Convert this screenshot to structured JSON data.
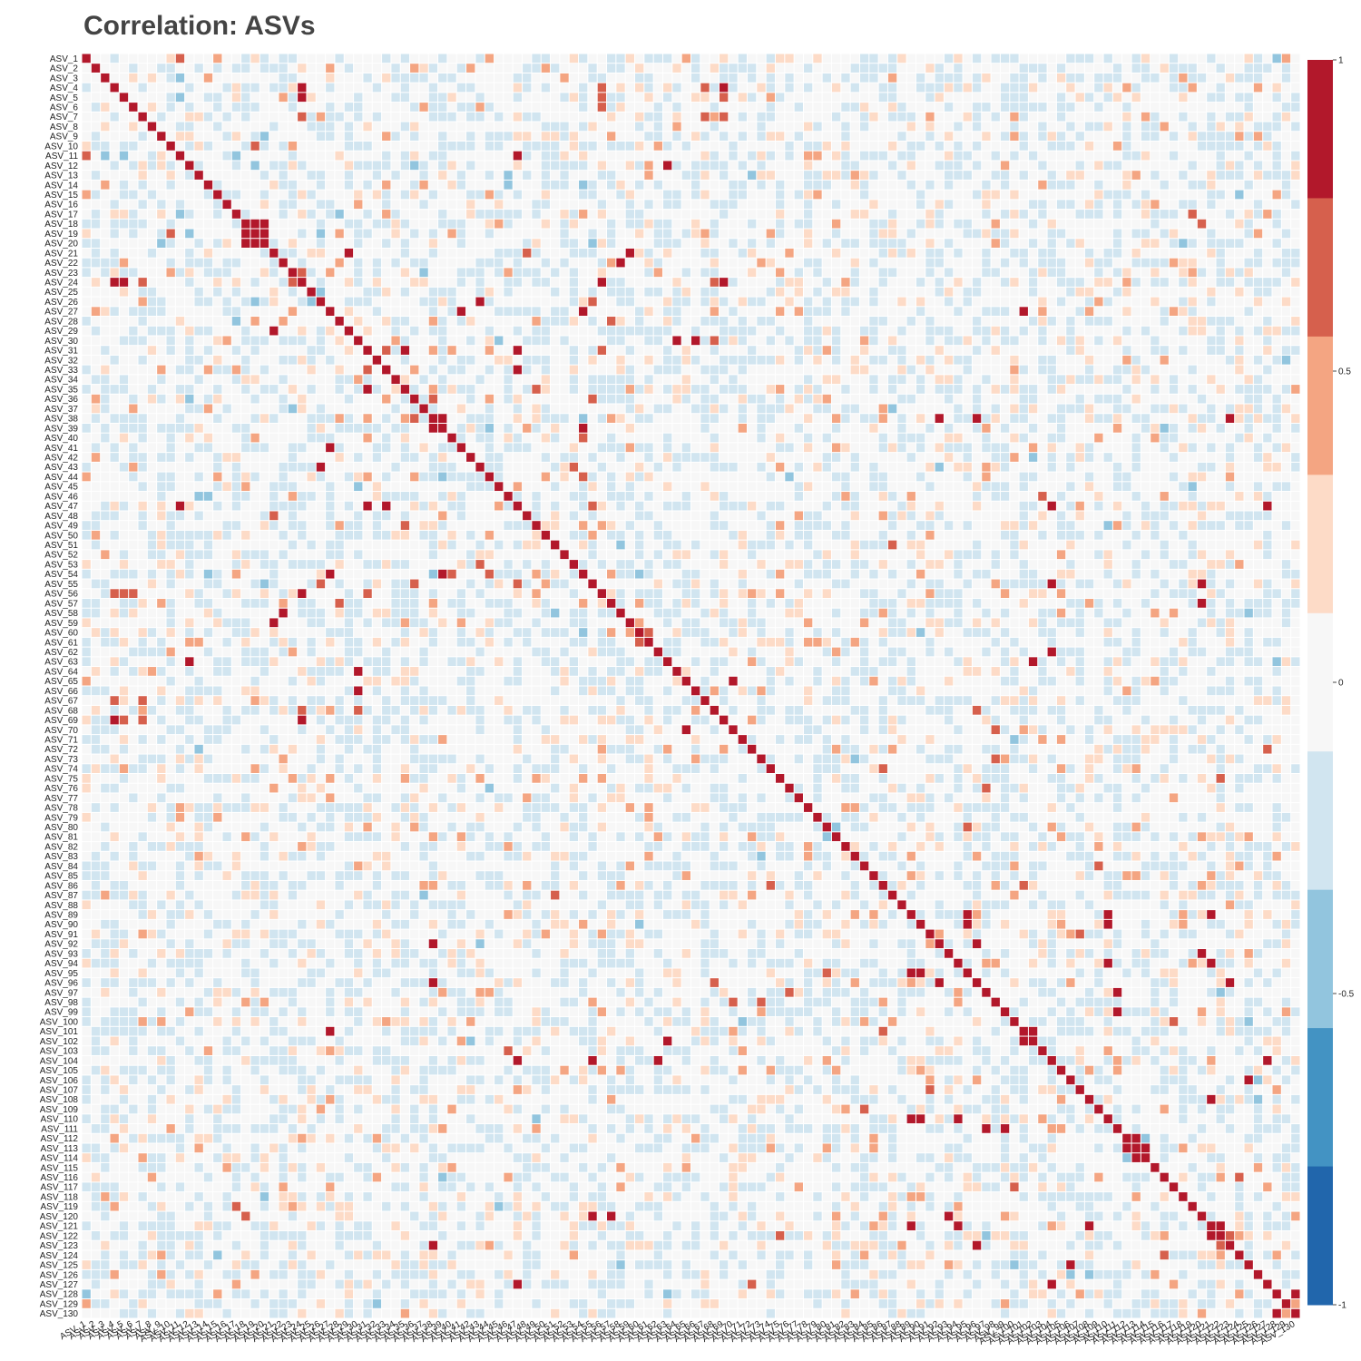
{
  "chart_data": {
    "type": "heatmap",
    "title": "Correlation: ASVs",
    "n_labels": 130,
    "label_prefix": "ASV_",
    "value_range": [
      -1,
      1
    ],
    "diagonal_value": 1,
    "colorscale": [
      {
        "min": -1.0,
        "max": -0.8,
        "color": "#2166ac"
      },
      {
        "min": -0.8,
        "max": -0.6,
        "color": "#4393c3"
      },
      {
        "min": -0.6,
        "max": -0.4,
        "color": "#92c5de"
      },
      {
        "min": -0.4,
        "max": -0.2,
        "color": "#d1e5f0"
      },
      {
        "min": -0.2,
        "max": 0.2,
        "color": "#f7f7f7"
      },
      {
        "min": 0.2,
        "max": 0.4,
        "color": "#fddbc7"
      },
      {
        "min": 0.4,
        "max": 0.6,
        "color": "#f4a582"
      },
      {
        "min": 0.6,
        "max": 0.8,
        "color": "#d6604d"
      },
      {
        "min": 0.8,
        "max": 1.0,
        "color": "#b2182b"
      }
    ],
    "colorbar_ticks": [
      {
        "value": 1,
        "label": "1"
      },
      {
        "value": 0.5,
        "label": "0.5"
      },
      {
        "value": 0,
        "label": "0"
      },
      {
        "value": -0.5,
        "label": "-0.5"
      },
      {
        "value": -1,
        "label": "-1"
      }
    ],
    "strong_pairs": [
      [
        4,
        24,
        0.9
      ],
      [
        4,
        56,
        0.7
      ],
      [
        4,
        67,
        0.75
      ],
      [
        4,
        69,
        0.85
      ],
      [
        5,
        24,
        0.85
      ],
      [
        5,
        56,
        0.7
      ],
      [
        5,
        69,
        0.7
      ],
      [
        6,
        56,
        0.7
      ],
      [
        7,
        24,
        0.7
      ],
      [
        7,
        67,
        0.7
      ],
      [
        7,
        69,
        0.75
      ],
      [
        10,
        19,
        0.7
      ],
      [
        11,
        47,
        0.85
      ],
      [
        11,
        1,
        0.75
      ],
      [
        12,
        63,
        0.9
      ],
      [
        13,
        46,
        -0.5
      ],
      [
        13,
        72,
        -0.5
      ],
      [
        18,
        19,
        0.9
      ],
      [
        18,
        20,
        0.85
      ],
      [
        19,
        20,
        0.9
      ],
      [
        17,
        119,
        0.7
      ],
      [
        18,
        120,
        0.7
      ],
      [
        21,
        29,
        0.9
      ],
      [
        21,
        59,
        0.9
      ],
      [
        21,
        48,
        0.7
      ],
      [
        22,
        58,
        0.9
      ],
      [
        23,
        24,
        0.7
      ],
      [
        24,
        56,
        0.85
      ],
      [
        24,
        68,
        0.8
      ],
      [
        24,
        69,
        0.9
      ],
      [
        26,
        43,
        0.9
      ],
      [
        26,
        55,
        0.7
      ],
      [
        27,
        41,
        0.9
      ],
      [
        27,
        54,
        0.85
      ],
      [
        27,
        101,
        0.9
      ],
      [
        28,
        57,
        0.7
      ],
      [
        30,
        64,
        0.85
      ],
      [
        30,
        66,
        0.9
      ],
      [
        30,
        68,
        0.8
      ],
      [
        30,
        45,
        -0.45
      ],
      [
        31,
        47,
        0.9
      ],
      [
        31,
        35,
        0.85
      ],
      [
        31,
        56,
        0.7
      ],
      [
        33,
        47,
        0.9
      ],
      [
        33,
        31,
        0.7
      ],
      [
        36,
        55,
        0.7
      ],
      [
        38,
        92,
        0.9
      ],
      [
        38,
        96,
        0.9
      ],
      [
        38,
        123,
        0.9
      ],
      [
        39,
        38,
        0.9
      ],
      [
        39,
        54,
        0.9
      ],
      [
        40,
        54,
        0.7
      ],
      [
        43,
        53,
        0.7
      ],
      [
        44,
        54,
        0.7
      ],
      [
        46,
        103,
        0.8
      ],
      [
        47,
        55,
        0.8
      ],
      [
        47,
        104,
        0.9
      ],
      [
        47,
        127,
        0.9
      ],
      [
        55,
        104,
        0.9
      ],
      [
        55,
        120,
        0.9
      ],
      [
        57,
        120,
        0.9
      ],
      [
        63,
        102,
        0.9
      ],
      [
        65,
        70,
        0.85
      ],
      [
        68,
        96,
        0.7
      ],
      [
        70,
        98,
        0.75
      ],
      [
        72,
        127,
        0.7
      ],
      [
        73,
        98,
        0.7
      ],
      [
        74,
        86,
        0.7
      ],
      [
        75,
        122,
        0.7
      ],
      [
        80,
        95,
        0.7
      ],
      [
        89,
        95,
        0.9
      ],
      [
        89,
        110,
        0.9
      ],
      [
        89,
        121,
        0.9
      ],
      [
        90,
        95,
        0.9
      ],
      [
        90,
        110,
        0.9
      ],
      [
        92,
        96,
        0.9
      ],
      [
        93,
        120,
        0.9
      ],
      [
        94,
        110,
        0.9
      ],
      [
        94,
        121,
        0.9
      ],
      [
        96,
        123,
        0.9
      ],
      [
        97,
        111,
        0.9
      ],
      [
        99,
        111,
        0.9
      ],
      [
        101,
        102,
        0.9
      ],
      [
        104,
        127,
        0.9
      ],
      [
        106,
        125,
        0.9
      ],
      [
        108,
        121,
        0.9
      ],
      [
        112,
        113,
        0.9
      ],
      [
        113,
        114,
        0.9
      ],
      [
        116,
        124,
        0.7
      ],
      [
        121,
        122,
        0.9
      ],
      [
        122,
        123,
        0.8
      ],
      [
        128,
        130,
        0.9
      ],
      [
        76,
        97,
        0.7
      ],
      [
        84,
        109,
        0.7
      ],
      [
        86,
        101,
        0.7
      ],
      [
        91,
        107,
        0.7
      ],
      [
        100,
        117,
        0.7
      ],
      [
        62,
        104,
        0.9
      ],
      [
        60,
        61,
        0.7
      ],
      [
        36,
        38,
        0.7
      ],
      [
        49,
        35,
        0.7
      ],
      [
        51,
        87,
        0.7
      ]
    ]
  }
}
